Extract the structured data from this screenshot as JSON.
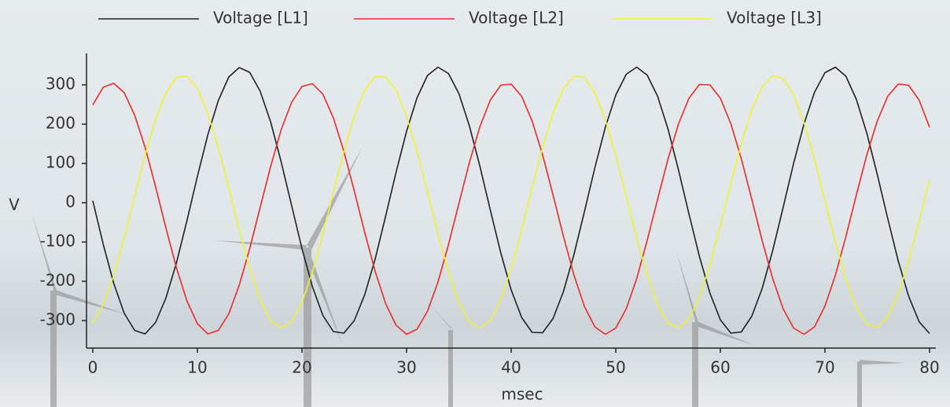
{
  "chart_data": {
    "type": "line",
    "x_label": "msec",
    "y_label": "V",
    "xlim": [
      -0.6,
      80.6
    ],
    "ylim": [
      -370,
      380
    ],
    "xticks": [
      0,
      10,
      20,
      30,
      40,
      50,
      60,
      70,
      80
    ],
    "yticks": [
      -300,
      -200,
      -100,
      0,
      100,
      200,
      300
    ],
    "grid": false,
    "legend": "top",
    "x": [
      0,
      1,
      2,
      3,
      4,
      5,
      6,
      7,
      8,
      9,
      10,
      11,
      12,
      13,
      14,
      15,
      16,
      17,
      18,
      19,
      20,
      21,
      22,
      23,
      24,
      25,
      26,
      27,
      28,
      29,
      30,
      31,
      32,
      33,
      34,
      35,
      36,
      37,
      38,
      39,
      40,
      41,
      42,
      43,
      44,
      45,
      46,
      47,
      48,
      49,
      50,
      51,
      52,
      53,
      54,
      55,
      56,
      57,
      58,
      59,
      60,
      61,
      62,
      63,
      64,
      65,
      66,
      67,
      68,
      69,
      70,
      71,
      72,
      73,
      74,
      75,
      76,
      77,
      78,
      79,
      80
    ],
    "series": [
      {
        "name": "Voltage [L1]",
        "color": "#222222",
        "values": [
          5,
          -106,
          -205,
          -281,
          -325,
          -334,
          -305,
          -242,
          -153,
          -46,
          67,
          173,
          260,
          320,
          344,
          332,
          284,
          206,
          105,
          -6,
          -117,
          -214,
          -287,
          -328,
          -332,
          -300,
          -234,
          -143,
          -34,
          78,
          182,
          267,
          324,
          345,
          329,
          278,
          196,
          94,
          -18,
          -127,
          -222,
          -292,
          -330,
          -331,
          -295,
          -226,
          -132,
          -23,
          89,
          192,
          274,
          327,
          345,
          325,
          271,
          187,
          83,
          -29,
          -137,
          -230,
          -298,
          -332,
          -329,
          -289,
          -218,
          -122,
          -12,
          100,
          201,
          281,
          331,
          345,
          322,
          263,
          177,
          72,
          -40,
          -148,
          -238,
          -303,
          -333
        ]
      },
      {
        "name": "Voltage [L2]",
        "color": "#ee2a2a",
        "values": [
          249,
          294,
          304,
          280,
          223,
          141,
          41,
          -65,
          -166,
          -250,
          -308,
          -334,
          -325,
          -283,
          -210,
          -117,
          -12,
          92,
          185,
          255,
          296,
          303,
          276,
          216,
          131,
          30,
          -76,
          -175,
          -257,
          -312,
          -335,
          -322,
          -276,
          -202,
          -107,
          -2,
          102,
          193,
          261,
          299,
          302,
          271,
          208,
          122,
          20,
          -86,
          -184,
          -264,
          -316,
          -335,
          -319,
          -270,
          -193,
          -96,
          9,
          112,
          201,
          266,
          301,
          300,
          266,
          201,
          112,
          9,
          -97,
          -193,
          -270,
          -319,
          -335,
          -316,
          -263,
          -184,
          -86,
          20,
          122,
          208,
          271,
          302,
          299,
          261,
          192
        ]
      },
      {
        "name": "Voltage [L3]",
        "color": "#f2f22a",
        "values": [
          -306,
          -260,
          -185,
          -90,
          16,
          121,
          212,
          280,
          319,
          322,
          291,
          228,
          140,
          38,
          -69,
          -167,
          -247,
          -300,
          -319,
          -303,
          -254,
          -176,
          -79,
          27,
          130,
          220,
          286,
          321,
          320,
          286,
          220,
          130,
          27,
          -79,
          -176,
          -254,
          -303,
          -319,
          -300,
          -247,
          -167,
          -69,
          38,
          140,
          228,
          291,
          322,
          319,
          280,
          212,
          121,
          16,
          -90,
          -185,
          -260,
          -306,
          -319,
          -296,
          -240,
          -158,
          -58,
          49,
          150,
          235,
          296,
          323,
          316,
          275,
          204,
          111,
          5,
          -100,
          -194,
          -266,
          -309,
          -318,
          -291,
          -233,
          -149,
          -47,
          59
        ]
      }
    ]
  }
}
